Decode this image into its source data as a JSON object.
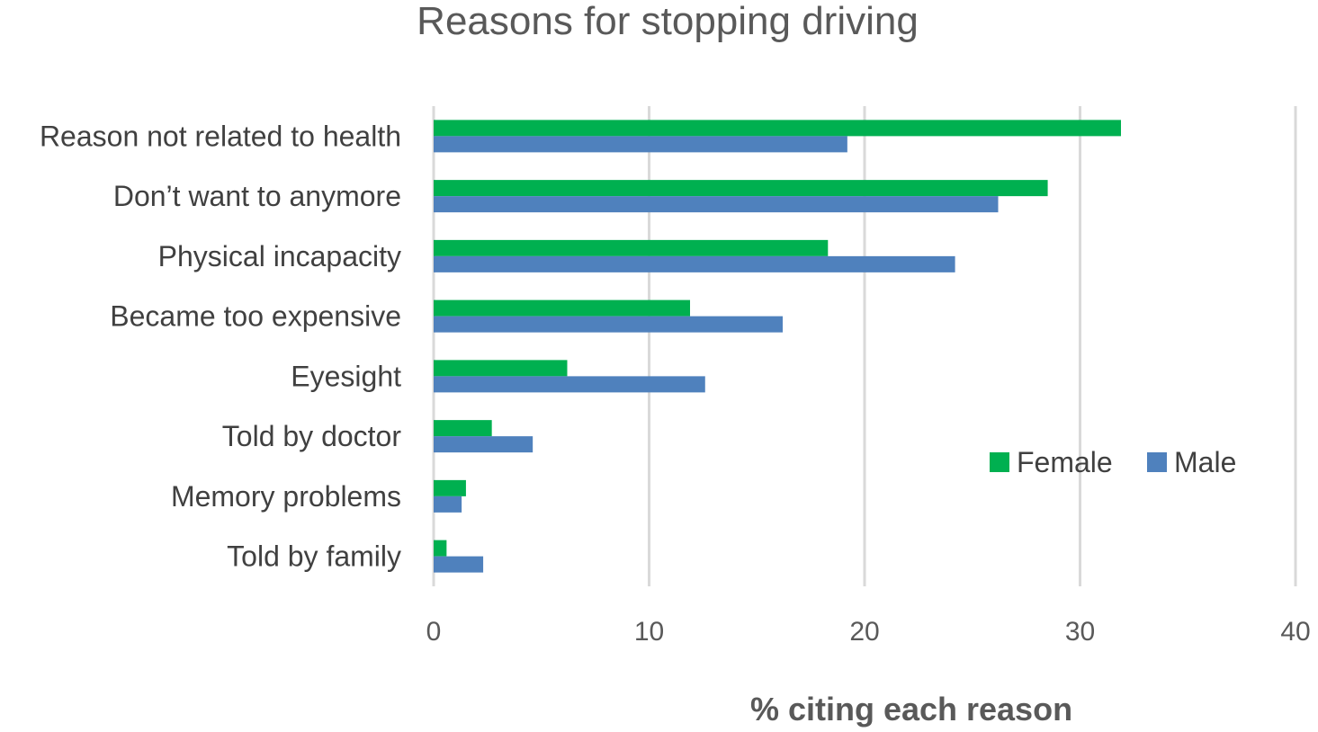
{
  "chart_data": {
    "type": "bar",
    "orientation": "horizontal",
    "title": "Reasons for stopping driving",
    "xlabel": "% citing each reason",
    "ylabel": "",
    "xlim": [
      0,
      40
    ],
    "xticks": [
      0,
      10,
      20,
      30,
      40
    ],
    "grid": true,
    "legend_position": "right",
    "categories": [
      "Reason not related to health",
      "Don’t want to anymore",
      "Physical incapacity",
      "Became too expensive",
      "Eyesight",
      "Told by  doctor",
      "Memory problems",
      "Told by family"
    ],
    "series": [
      {
        "name": "Female",
        "color": "#00b050",
        "values": [
          31.9,
          28.5,
          18.3,
          11.9,
          6.2,
          2.7,
          1.5,
          0.6
        ]
      },
      {
        "name": "Male",
        "color": "#4f81bd",
        "values": [
          19.2,
          26.2,
          24.2,
          16.2,
          12.6,
          4.6,
          1.3,
          2.3
        ]
      }
    ]
  }
}
